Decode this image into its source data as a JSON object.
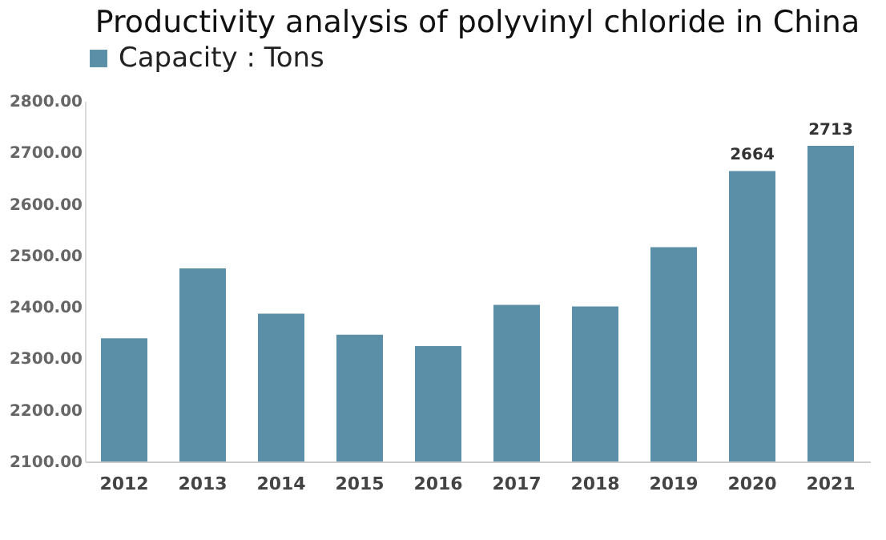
{
  "chart_data": {
    "type": "bar",
    "title": "Productivity analysis of polyvinyl chloride in China",
    "categories": [
      "2012",
      "2013",
      "2014",
      "2015",
      "2016",
      "2017",
      "2018",
      "2019",
      "2020",
      "2021"
    ],
    "series": [
      {
        "name": "Capacity : Tons",
        "color": "#5b8fa8",
        "values": [
          2339,
          2475,
          2387,
          2346,
          2324,
          2404,
          2401,
          2516,
          2664,
          2713
        ],
        "value_labels": [
          null,
          null,
          null,
          null,
          null,
          null,
          null,
          null,
          "2664",
          "2713"
        ]
      }
    ],
    "ylim": [
      2100,
      2800
    ],
    "yticks": [
      {
        "value": 2100,
        "label": "2100.00"
      },
      {
        "value": 2200,
        "label": "2200.00"
      },
      {
        "value": 2300,
        "label": "2300.00"
      },
      {
        "value": 2400,
        "label": "2400.00"
      },
      {
        "value": 2500,
        "label": "2500.00"
      },
      {
        "value": 2600,
        "label": "2600.00"
      },
      {
        "value": 2700,
        "label": "2700.00"
      },
      {
        "value": 2800,
        "label": "2800.00"
      }
    ],
    "grid": false,
    "legend": "top"
  }
}
